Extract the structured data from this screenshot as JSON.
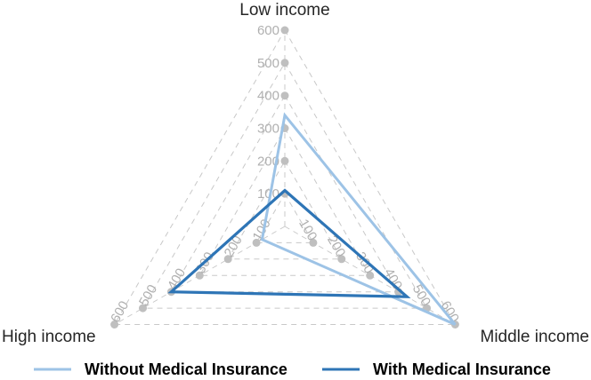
{
  "chart_data": {
    "type": "radar",
    "title": "",
    "axes": [
      "Low income",
      "Middle income",
      "High income"
    ],
    "rmax": 600,
    "ticks": [
      100,
      200,
      300,
      400,
      500,
      600
    ],
    "grid": true,
    "legend_position": "bottom",
    "series": [
      {
        "name": "Without Medical Insurance",
        "values": [
          340,
          600,
          80
        ],
        "color": "#9dc3e6"
      },
      {
        "name": "With Medical Insurance",
        "values": [
          110,
          430,
          400
        ],
        "color": "#2e75b6"
      }
    ]
  }
}
